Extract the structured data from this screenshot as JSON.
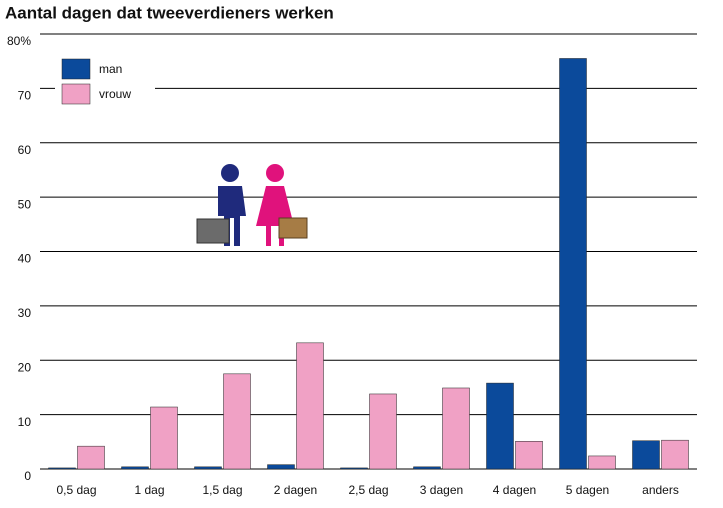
{
  "chart_data": {
    "type": "bar",
    "title": "Aantal dagen dat tweeverdieners werken",
    "categories": [
      "0,5 dag",
      "1 dag",
      "1,5 dag",
      "2 dagen",
      "2,5 dag",
      "3 dagen",
      "4 dagen",
      "5 dagen",
      "anders"
    ],
    "series": [
      {
        "name": "man",
        "color": "#0b4a9b",
        "values": [
          0.2,
          0.4,
          0.4,
          0.8,
          0.2,
          0.4,
          15.8,
          75.5,
          5.2
        ]
      },
      {
        "name": "vrouw",
        "color": "#f0a1c5",
        "values": [
          4.2,
          11.4,
          17.5,
          23.2,
          13.8,
          14.9,
          5.1,
          2.4,
          5.3
        ]
      }
    ],
    "ylim": [
      0,
      80
    ],
    "yticks": [
      0,
      10,
      20,
      30,
      40,
      50,
      60,
      70,
      {
        "value": 80,
        "label": "80%"
      }
    ],
    "grid": true,
    "legend": "upper-left"
  }
}
